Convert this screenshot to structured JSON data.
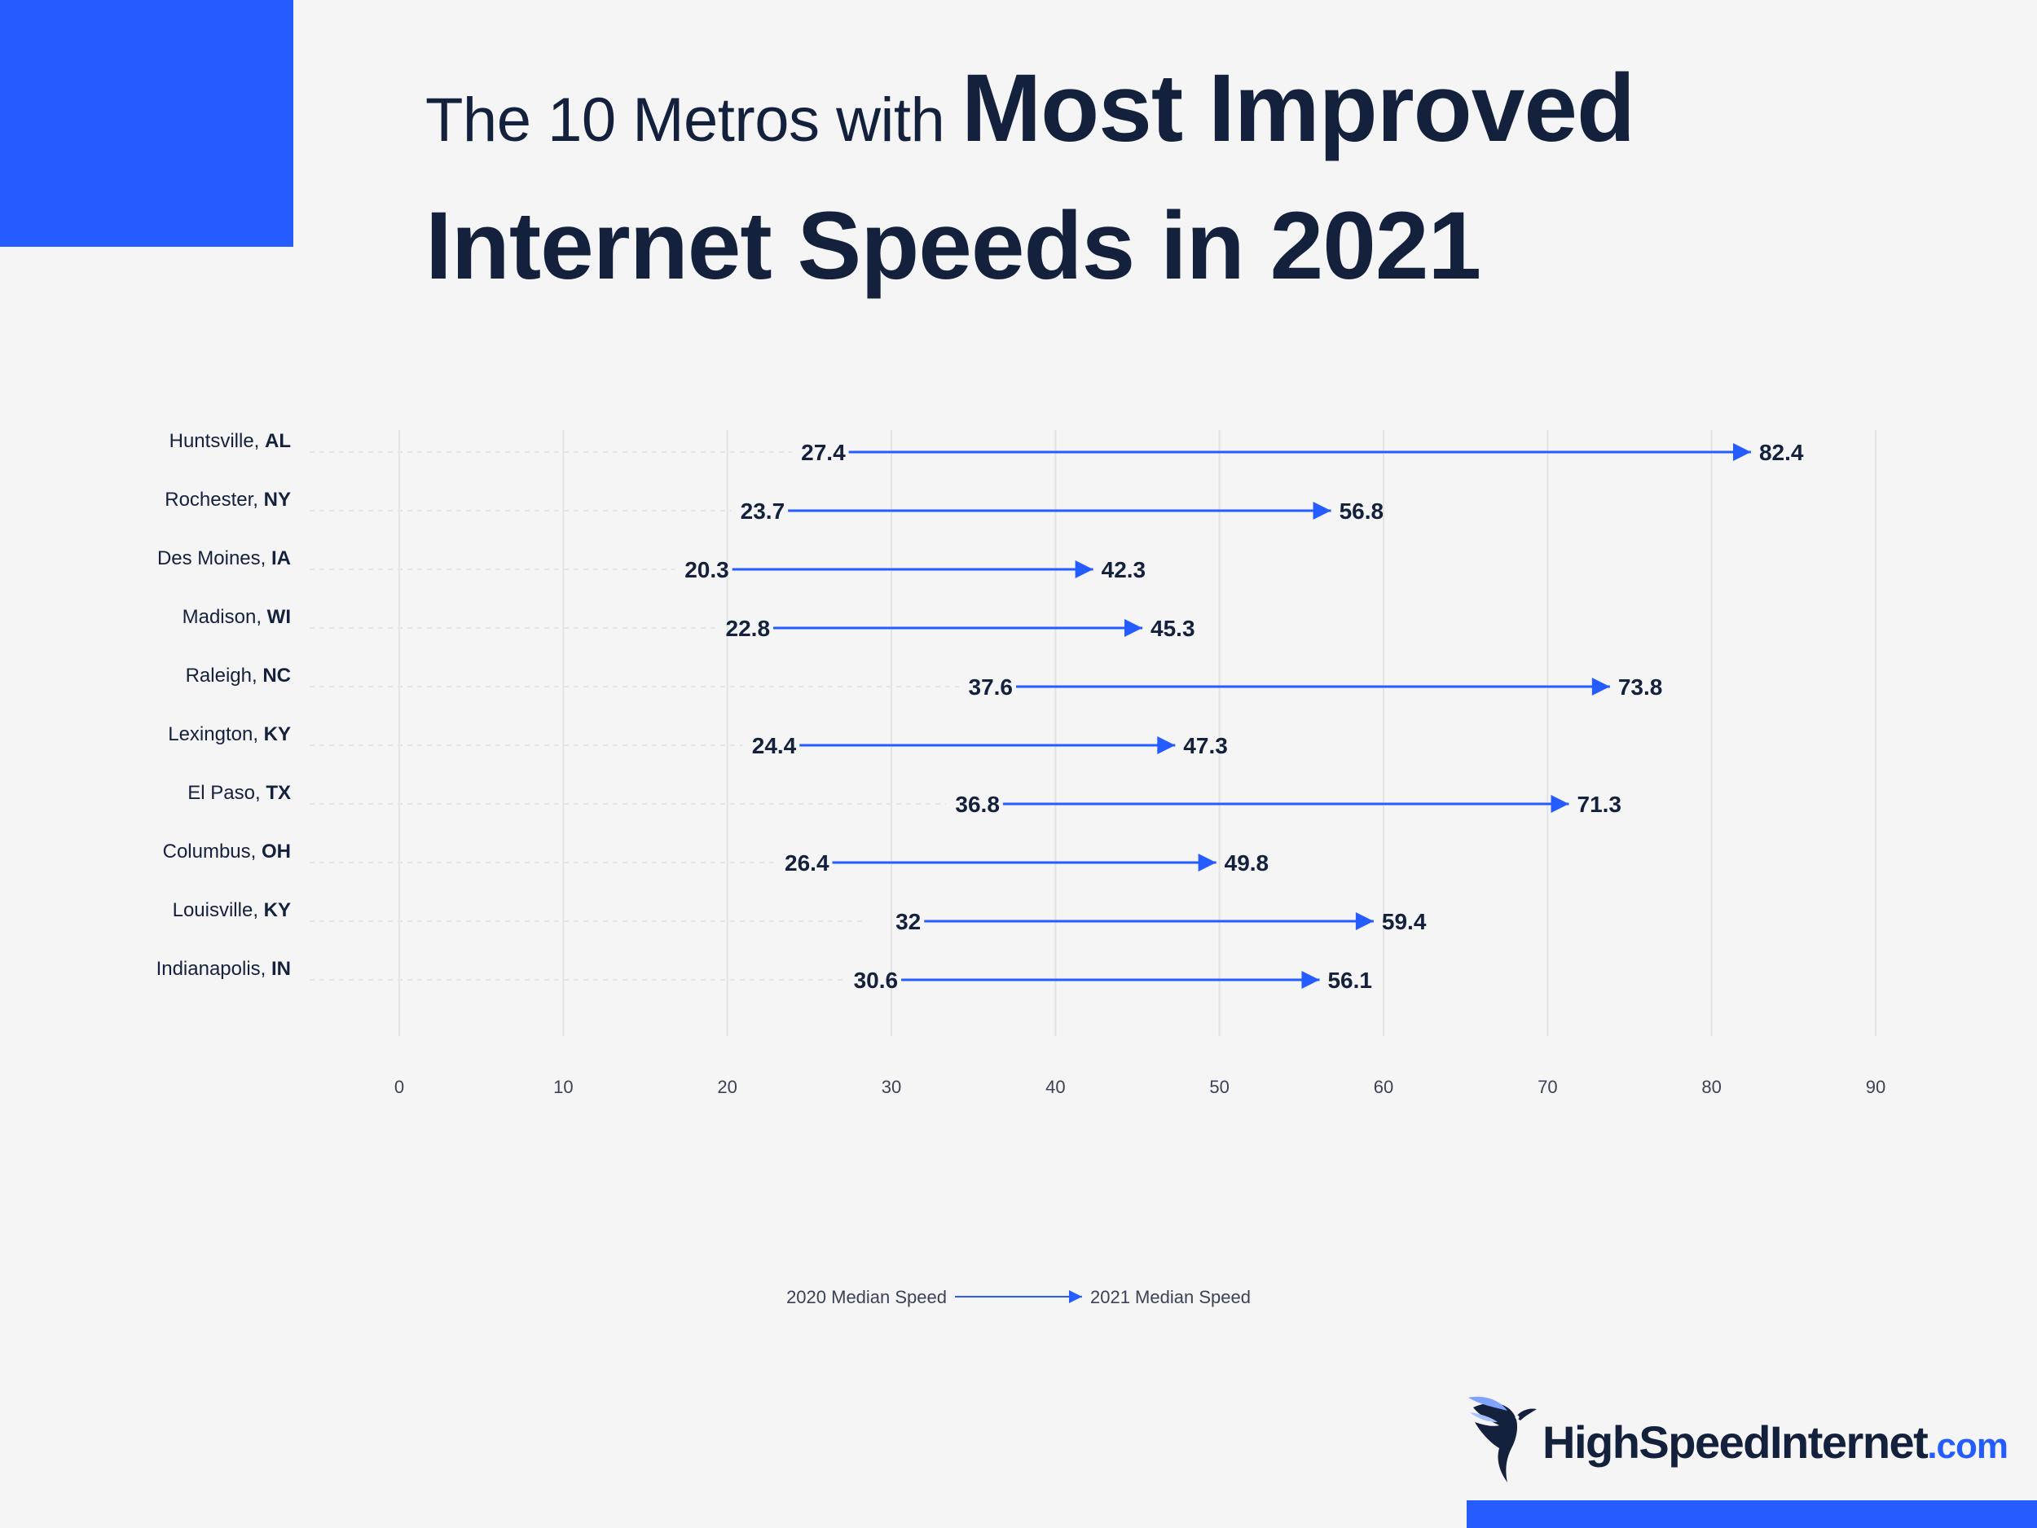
{
  "title": {
    "light": "The 10 Metros with ",
    "bold_line1": "Most Improved",
    "bold_line2": "Internet Speeds in 2021"
  },
  "colors": {
    "accent": "#255cff",
    "text": "#14213d",
    "grid": "#e3e3e3",
    "background": "#f5f5f5"
  },
  "chart_data": {
    "type": "arrow-dumbbell",
    "title": "The 10 Metros with Most Improved Internet Speeds in 2021",
    "xlabel": "",
    "ylabel": "",
    "xlim": [
      0,
      90
    ],
    "xticks": [
      0,
      10,
      20,
      30,
      40,
      50,
      60,
      70,
      80,
      90
    ],
    "grid": true,
    "legend": {
      "start": "2020 Median Speed",
      "end": "2021 Median Speed",
      "position": "bottom-center"
    },
    "categories": [
      {
        "city": "Huntsville, ",
        "state": "AL"
      },
      {
        "city": "Rochester, ",
        "state": "NY"
      },
      {
        "city": "Des Moines, ",
        "state": "IA"
      },
      {
        "city": "Madison, ",
        "state": "WI"
      },
      {
        "city": "Raleigh, ",
        "state": "NC"
      },
      {
        "city": "Lexington, ",
        "state": "KY"
      },
      {
        "city": "El Paso, ",
        "state": "TX"
      },
      {
        "city": "Columbus, ",
        "state": "OH"
      },
      {
        "city": "Louisville, ",
        "state": "KY"
      },
      {
        "city": "Indianapolis, ",
        "state": "IN"
      }
    ],
    "series": [
      {
        "name": "2020 Median Speed",
        "values": [
          27.4,
          23.7,
          20.3,
          22.8,
          37.6,
          24.4,
          36.8,
          26.4,
          32,
          30.6
        ]
      },
      {
        "name": "2021 Median Speed",
        "values": [
          82.4,
          56.8,
          42.3,
          45.3,
          73.8,
          47.3,
          71.3,
          49.8,
          59.4,
          56.1
        ]
      }
    ]
  },
  "logo": {
    "name": "HighSpeedInternet",
    "tld": ".com",
    "icon": "hummingbird-icon"
  }
}
